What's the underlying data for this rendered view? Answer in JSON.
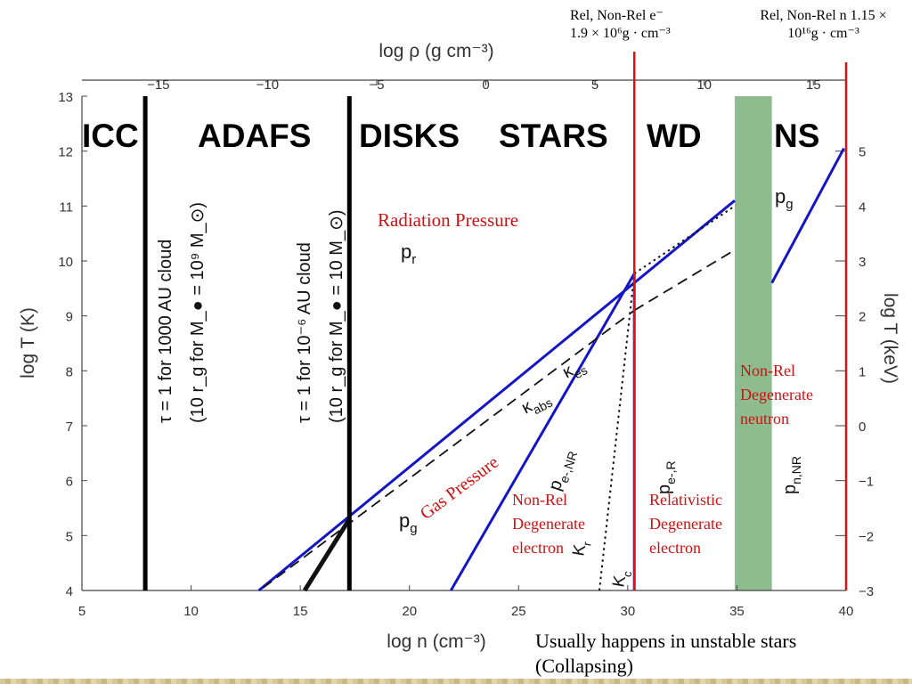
{
  "annotations": {
    "top_left_line1": "Rel, Non-Rel e⁻",
    "top_left_line2": "1.9 × 10⁶g · cm⁻³",
    "top_right_line1": "Rel, Non-Rel  n 1.15 ×",
    "top_right_line2": "10¹⁶g · cm⁻³",
    "radiation_pressure": "Radiation Pressure",
    "gas_pressure": "Gas Pressure",
    "nonrel_degenerate_electron": [
      "Non-Rel",
      "Degenerate",
      "electron"
    ],
    "relativistic_degenerate_electron": [
      "Relativistic",
      "Degenerate",
      "electron"
    ],
    "nonrel_degenerate_neutron": [
      "Non-Rel",
      "Degenerate",
      "neutron"
    ],
    "footnote_line1": "Usually happens in unstable stars",
    "footnote_line2": "(Collapsing)"
  },
  "colors": {
    "blue_lines": "#1515c8",
    "red_lines": "#dd1111",
    "ns_band": "#8fbc8f",
    "axis_text": "#333333"
  },
  "chart_data": {
    "type": "line",
    "xlabel": "log n  (cm⁻³)",
    "xlim": [
      5,
      40
    ],
    "x_ticks": [
      5,
      10,
      15,
      20,
      25,
      30,
      35,
      40
    ],
    "ylabel": "log T  (K)",
    "ylim": [
      4,
      13
    ],
    "y_ticks": [
      4,
      5,
      6,
      7,
      8,
      9,
      10,
      11,
      12,
      13
    ],
    "top_axis": {
      "label": "log ρ  (g cm⁻³)",
      "ticks": [
        -15,
        -10,
        -5,
        0,
        5,
        10,
        15
      ],
      "offset_from_log_n": -23.5
    },
    "right_axis": {
      "label": "log T  (keV)",
      "ticks": [
        -3,
        -2,
        -1,
        0,
        1,
        2,
        3,
        4,
        5
      ],
      "offset_from_log_T": -7
    },
    "regions": [
      "ICC",
      "ADAFS",
      "DISKS",
      "STARS",
      "WD",
      "NS"
    ],
    "vertical_boundaries": [
      {
        "x": 7.9,
        "label1": "τ = 1  for 1000 AU cloud",
        "label2": "(10 r_g for M_● = 10⁹ M_⊙)"
      },
      {
        "x": 17.25,
        "label1": "τ = 1  for 10⁻⁶ AU cloud",
        "label2": "(10 r_g for M_● = 10 M_⊙)"
      }
    ],
    "red_verticals": [
      30.3,
      40
    ],
    "ns_band_x": [
      34.9,
      36.6
    ],
    "series": [
      {
        "name": "p_r / p_g boundary",
        "style": "blue",
        "x": [
          13.1,
          34.9
        ],
        "y": [
          4.0,
          11.1
        ]
      },
      {
        "name": "p_e-,NR",
        "style": "blue",
        "x": [
          21.9,
          30.3
        ],
        "y": [
          4.0,
          9.77
        ]
      },
      {
        "name": "p_e-,R",
        "style": "blue",
        "x": [
          30.3,
          30.3
        ],
        "y": [
          4.0,
          9.77
        ]
      },
      {
        "name": "p_n,NR",
        "style": "blue",
        "x": [
          36.6,
          39.9
        ],
        "y": [
          9.6,
          12.05
        ]
      },
      {
        "name": "κ_es",
        "style": "dashed",
        "x": [
          30.3,
          34.9
        ],
        "y": [
          9.1,
          10.2
        ]
      },
      {
        "name": "κ_abs",
        "style": "dashed",
        "x": [
          13.3,
          30.3
        ],
        "y": [
          4.05,
          9.1
        ]
      },
      {
        "name": "K_r",
        "style": "dotted",
        "x": [
          30.3,
          34.9
        ],
        "y": [
          9.77,
          11.0
        ]
      },
      {
        "name": "K_c",
        "style": "dotted",
        "x": [
          28.7,
          30.3
        ],
        "y": [
          4.0,
          9.77
        ]
      },
      {
        "name": "τ boundary",
        "style": "black",
        "x": [
          15.2,
          17.25
        ],
        "y": [
          4.0,
          5.3
        ]
      }
    ],
    "labels": {
      "pr": "p",
      "pr_sub": "r",
      "pg": "p",
      "pg_sub": "g",
      "pg_ns": "p",
      "pg_ns_sub": "g",
      "kes": "κ",
      "kes_sub": "es",
      "kabs": "κ",
      "kabs_sub": "abs",
      "pe_nr": "p",
      "pe_nr_sub": "e-,NR",
      "pe_r": "p",
      "pe_r_sub": "e-,R",
      "pn_nr": "p",
      "pn_nr_sub": "n,NR",
      "kr": "K",
      "kr_sub": "r",
      "kc": "K",
      "kc_sub": "c"
    }
  }
}
